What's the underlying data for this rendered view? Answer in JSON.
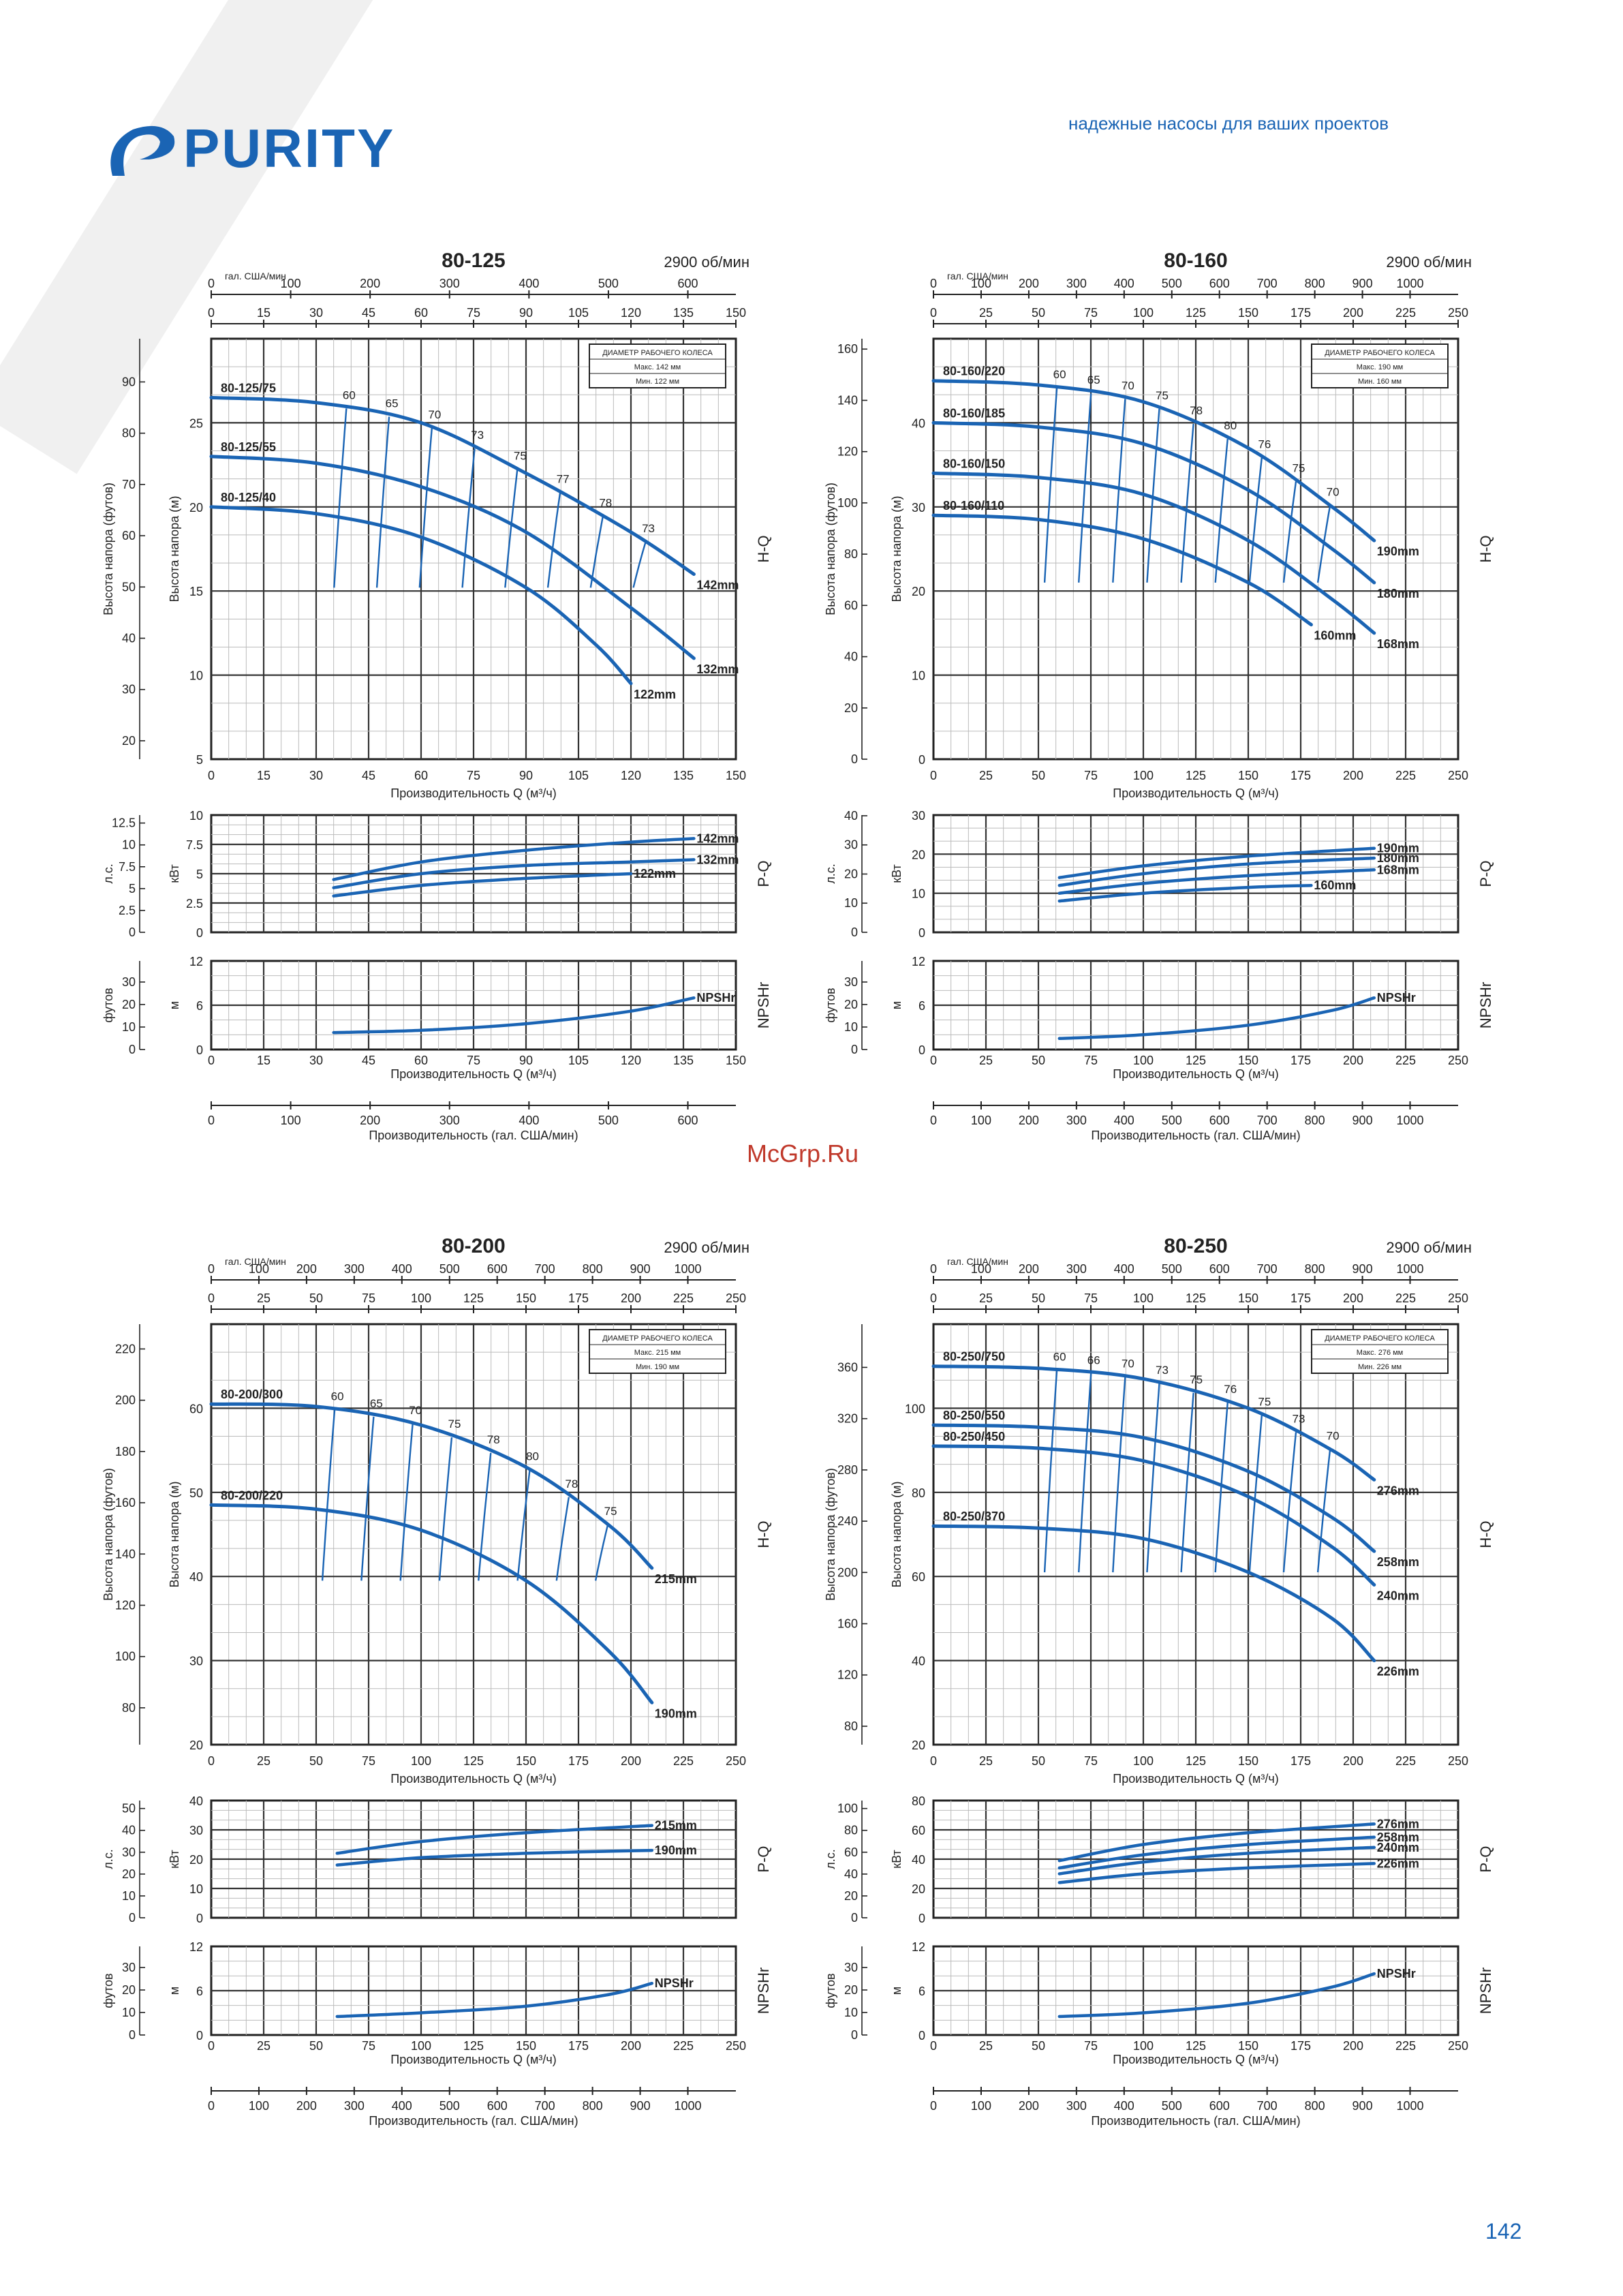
{
  "header": {
    "brand": "PURITY",
    "tagline": "надежные насосы для ваших проектов",
    "brand_color": "#1a64b4"
  },
  "watermark": "McGrp.Ru",
  "page_number": "142",
  "chart_data": [
    {
      "type": "line",
      "title": "80-125",
      "speed": "2900 об/мин",
      "xlabel": "Производительность Q (м³/ч)",
      "us_axis_label": "гал. США/мин",
      "us_label_bottom": "Производительность (гал. США/мин)",
      "x_ticks": [
        0,
        15,
        30,
        45,
        60,
        75,
        90,
        105,
        120,
        135,
        150
      ],
      "us_ticks": [
        0,
        100,
        200,
        300,
        400,
        500,
        600
      ],
      "us_factor": 4.403,
      "impeller_box": [
        "ДИАМЕТР РАБОЧЕГО КОЛЕСА",
        "Макс. 142 мм",
        "Мин. 122 мм"
      ],
      "hq": {
        "ylabel": "Высота напора (м)",
        "ylabel2": "Высота напора (футов)",
        "tag": "H-Q",
        "ylim": [
          5,
          30
        ],
        "m_ticks": [
          5,
          10,
          15,
          20,
          25
        ],
        "ft_ticks": [
          20,
          30,
          40,
          50,
          60,
          70,
          80,
          90
        ],
        "series": [
          {
            "name": "142mm",
            "label": "80-125/75",
            "x": [
              0,
              30,
              60,
              90,
              120,
              138
            ],
            "y": [
              26.5,
              26.2,
              25,
              22,
              18.5,
              16
            ]
          },
          {
            "name": "132mm",
            "label": "80-125/55",
            "x": [
              0,
              30,
              60,
              90,
              120,
              138
            ],
            "y": [
              23,
              22.6,
              21.2,
              18.5,
              14,
              11
            ]
          },
          {
            "name": "122mm",
            "label": "80-125/40",
            "x": [
              0,
              30,
              60,
              90,
              110,
              120
            ],
            "y": [
              20,
              19.6,
              18.2,
              15.2,
              11.8,
              9.5
            ]
          }
        ],
        "eff_labels": [
          "60",
          "65",
          "70",
          "73",
          "75",
          "77",
          "78",
          "73"
        ]
      },
      "pq": {
        "ylabel": "кВт",
        "ylabel2": "л.с.",
        "tag": "P-Q",
        "ylim": [
          0,
          10
        ],
        "kw_ticks": [
          0,
          2.5,
          5,
          7.5,
          10
        ],
        "hp_ticks": [
          0,
          2.5,
          5,
          7.5,
          10,
          12.5
        ],
        "series": [
          {
            "name": "142mm",
            "x": [
              35,
              60,
              90,
              120,
              138
            ],
            "y": [
              4.5,
              6,
              7,
              7.7,
              8
            ]
          },
          {
            "name": "132mm",
            "x": [
              35,
              60,
              90,
              120,
              138
            ],
            "y": [
              3.8,
              5,
              5.7,
              6,
              6.2
            ]
          },
          {
            "name": "122mm",
            "x": [
              35,
              60,
              90,
              120
            ],
            "y": [
              3.1,
              4,
              4.6,
              5
            ]
          }
        ]
      },
      "npsh": {
        "ylabel": "м",
        "ylabel2": "футов",
        "tag": "NPSHr",
        "ylim": [
          0,
          12
        ],
        "m_ticks": [
          0,
          6,
          12
        ],
        "ft_ticks": [
          0,
          10,
          20,
          30
        ],
        "series": [
          {
            "name": "NPSHr",
            "x": [
              35,
              60,
              90,
              120,
              138
            ],
            "y": [
              2.3,
              2.6,
              3.5,
              5.2,
              7
            ]
          }
        ]
      }
    },
    {
      "type": "line",
      "title": "80-160",
      "speed": "2900 об/мин",
      "xlabel": "Производительность Q (м³/ч)",
      "us_axis_label": "гал. США/мин",
      "us_label_bottom": "Производительность (гал. США/мин)",
      "x_ticks": [
        0,
        25,
        50,
        75,
        100,
        125,
        150,
        175,
        200,
        225,
        250
      ],
      "us_ticks": [
        0,
        100,
        200,
        300,
        400,
        500,
        600,
        700,
        800,
        900,
        1000
      ],
      "us_factor": 4.403,
      "impeller_box": [
        "ДИАМЕТР РАБОЧЕГО КОЛЕСА",
        "Макс. 190 мм",
        "Мин. 160 мм"
      ],
      "hq": {
        "ylabel": "Высота напора (м)",
        "ylabel2": "Высота напора (футов)",
        "tag": "H-Q",
        "ylim": [
          0,
          50
        ],
        "m_ticks": [
          0,
          10,
          20,
          30,
          40
        ],
        "ft_ticks": [
          0,
          20,
          40,
          60,
          80,
          100,
          120,
          140,
          160
        ],
        "series": [
          {
            "name": "190mm",
            "label": "80-160/220",
            "x": [
              0,
              50,
              100,
              150,
              190,
              210
            ],
            "y": [
              45,
              44.5,
              42.5,
              37,
              30,
              26
            ]
          },
          {
            "name": "180mm",
            "label": "80-160/185",
            "x": [
              0,
              50,
              100,
              150,
              190,
              210
            ],
            "y": [
              40,
              39.5,
              37.5,
              32,
              25,
              21
            ]
          },
          {
            "name": "168mm",
            "label": "80-160/150",
            "x": [
              0,
              50,
              100,
              150,
              190,
              210
            ],
            "y": [
              34,
              33.5,
              31.5,
              26,
              19,
              15
            ]
          },
          {
            "name": "160mm",
            "label": "80-160/110",
            "x": [
              0,
              50,
              100,
              150,
              180
            ],
            "y": [
              29,
              28.5,
              26.2,
              21,
              16
            ]
          }
        ],
        "eff_labels": [
          "60",
          "65",
          "70",
          "75",
          "78",
          "80",
          "76",
          "75",
          "70"
        ]
      },
      "pq": {
        "ylabel": "кВт",
        "ylabel2": "л.с.",
        "tag": "P-Q",
        "ylim": [
          0,
          30
        ],
        "kw_ticks": [
          0,
          10,
          20,
          30
        ],
        "hp_ticks": [
          0,
          10,
          20,
          30,
          40
        ],
        "series": [
          {
            "name": "190mm",
            "x": [
              60,
              100,
              150,
              210
            ],
            "y": [
              14,
              17,
              19.5,
              21.5
            ]
          },
          {
            "name": "180mm",
            "x": [
              60,
              100,
              150,
              210
            ],
            "y": [
              12,
              15,
              17.5,
              19
            ]
          },
          {
            "name": "168mm",
            "x": [
              60,
              100,
              150,
              210
            ],
            "y": [
              10,
              12.5,
              14.5,
              16
            ]
          },
          {
            "name": "160mm",
            "x": [
              60,
              100,
              150,
              180
            ],
            "y": [
              8,
              10,
              11.5,
              12
            ]
          }
        ]
      },
      "npsh": {
        "ylabel": "м",
        "ylabel2": "футов",
        "tag": "NPSHr",
        "ylim": [
          0,
          12
        ],
        "m_ticks": [
          0,
          6,
          12
        ],
        "ft_ticks": [
          0,
          10,
          20,
          30
        ],
        "series": [
          {
            "name": "NPSHr",
            "x": [
              60,
              100,
              150,
              190,
              210
            ],
            "y": [
              1.5,
              2,
              3.3,
              5.3,
              7
            ]
          }
        ]
      }
    },
    {
      "type": "line",
      "title": "80-200",
      "speed": "2900 об/мин",
      "xlabel": "Производительность Q (м³/ч)",
      "us_axis_label": "гал. США/мин",
      "us_label_bottom": "Производительность (гал. США/мин)",
      "x_ticks": [
        0,
        25,
        50,
        75,
        100,
        125,
        150,
        175,
        200,
        225,
        250
      ],
      "us_ticks": [
        0,
        100,
        200,
        300,
        400,
        500,
        600,
        700,
        800,
        900,
        1000
      ],
      "us_factor": 4.403,
      "impeller_box": [
        "ДИАМЕТР РАБОЧЕГО КОЛЕСА",
        "Макс. 215 мм",
        "Мин. 190 мм"
      ],
      "hq": {
        "ylabel": "Высота напора (м)",
        "ylabel2": "Высота напора (футов)",
        "tag": "H-Q",
        "ylim": [
          20,
          70
        ],
        "m_ticks": [
          20,
          30,
          40,
          50,
          60
        ],
        "ft_ticks": [
          80,
          100,
          120,
          140,
          160,
          180,
          200,
          220
        ],
        "series": [
          {
            "name": "215mm",
            "label": "80-200/300",
            "x": [
              0,
              50,
              100,
              150,
              190,
              210
            ],
            "y": [
              60.5,
              60.2,
              58,
              53,
              46,
              41
            ]
          },
          {
            "name": "190mm",
            "label": "80-200/220",
            "x": [
              0,
              50,
              100,
              150,
              190,
              210
            ],
            "y": [
              48.5,
              48,
              45.5,
              39.5,
              31,
              25
            ]
          }
        ],
        "eff_labels": [
          "60",
          "65",
          "70",
          "75",
          "78",
          "80",
          "78",
          "75"
        ]
      },
      "pq": {
        "ylabel": "кВт",
        "ylabel2": "л.с.",
        "tag": "P-Q",
        "ylim": [
          0,
          40
        ],
        "kw_ticks": [
          0,
          10,
          20,
          30,
          40
        ],
        "hp_ticks": [
          0,
          10,
          20,
          30,
          40,
          50
        ],
        "series": [
          {
            "name": "215mm",
            "x": [
              60,
              100,
              150,
              210
            ],
            "y": [
              22,
              26,
              29,
              31.5
            ]
          },
          {
            "name": "190mm",
            "x": [
              60,
              100,
              150,
              210
            ],
            "y": [
              18,
              20.5,
              22,
              23
            ]
          }
        ]
      },
      "npsh": {
        "ylabel": "м",
        "ylabel2": "футов",
        "tag": "NPSHr",
        "ylim": [
          0,
          12
        ],
        "m_ticks": [
          0,
          6,
          12
        ],
        "ft_ticks": [
          0,
          10,
          20,
          30
        ],
        "series": [
          {
            "name": "NPSHr",
            "x": [
              60,
              100,
              150,
              190,
              210
            ],
            "y": [
              2.5,
              3,
              3.9,
              5.5,
              7
            ]
          }
        ]
      }
    },
    {
      "type": "line",
      "title": "80-250",
      "speed": "2900 об/мин",
      "xlabel": "Производительность Q (м³/ч)",
      "us_axis_label": "гал. США/мин",
      "us_label_bottom": "Производительность (гал. США/мин)",
      "x_ticks": [
        0,
        25,
        50,
        75,
        100,
        125,
        150,
        175,
        200,
        225,
        250
      ],
      "us_ticks": [
        0,
        100,
        200,
        300,
        400,
        500,
        600,
        700,
        800,
        900,
        1000
      ],
      "us_factor": 4.403,
      "impeller_box": [
        "ДИАМЕТР РАБОЧЕГО КОЛЕСА",
        "Макс. 276 мм",
        "Мин. 226 мм"
      ],
      "hq": {
        "ylabel": "Высота напора (м)",
        "ylabel2": "Высота напора (футов)",
        "tag": "H-Q",
        "ylim": [
          20,
          120
        ],
        "m_ticks": [
          20,
          40,
          60,
          80,
          100
        ],
        "ft_ticks": [
          80,
          120,
          160,
          200,
          240,
          280,
          320,
          360
        ],
        "series": [
          {
            "name": "276mm",
            "label": "80-250/750",
            "x": [
              0,
              50,
              100,
              150,
              190,
              210
            ],
            "y": [
              110,
              109.5,
              107,
              100,
              90,
              83
            ]
          },
          {
            "name": "258mm",
            "label": "80-250/550",
            "x": [
              0,
              50,
              100,
              150,
              190,
              210
            ],
            "y": [
              96,
              95.5,
              93,
              85,
              74,
              66
            ]
          },
          {
            "name": "240mm",
            "label": "80-250/450",
            "x": [
              0,
              50,
              100,
              150,
              190,
              210
            ],
            "y": [
              91,
              90.5,
              87.5,
              79,
              67,
              58
            ]
          },
          {
            "name": "226mm",
            "label": "80-250/370",
            "x": [
              0,
              50,
              100,
              150,
              190,
              210
            ],
            "y": [
              72,
              71.5,
              69,
              61,
              50,
              40
            ]
          }
        ],
        "eff_labels": [
          "60",
          "66",
          "70",
          "73",
          "75",
          "76",
          "75",
          "73",
          "70"
        ]
      },
      "pq": {
        "ylabel": "кВт",
        "ylabel2": "л.с.",
        "tag": "P-Q",
        "ylim": [
          0,
          80
        ],
        "kw_ticks": [
          0,
          20,
          40,
          60,
          80
        ],
        "hp_ticks": [
          0,
          20,
          40,
          60,
          80,
          100
        ],
        "series": [
          {
            "name": "276mm",
            "x": [
              60,
              100,
              150,
              210
            ],
            "y": [
              39,
              50,
              58,
              64
            ]
          },
          {
            "name": "258mm",
            "x": [
              60,
              100,
              150,
              210
            ],
            "y": [
              34,
              43,
              50,
              55
            ]
          },
          {
            "name": "240mm",
            "x": [
              60,
              100,
              150,
              210
            ],
            "y": [
              30,
              38,
              44,
              48
            ]
          },
          {
            "name": "226mm",
            "x": [
              60,
              100,
              150,
              210
            ],
            "y": [
              24,
              30,
              34,
              37
            ]
          }
        ]
      },
      "npsh": {
        "ylabel": "м",
        "ylabel2": "футов",
        "tag": "NPSHr",
        "ylim": [
          0,
          12
        ],
        "m_ticks": [
          0,
          6,
          12
        ],
        "ft_ticks": [
          0,
          10,
          20,
          30
        ],
        "series": [
          {
            "name": "NPSHr",
            "x": [
              60,
              100,
              150,
              190,
              210
            ],
            "y": [
              2.5,
              3,
              4.3,
              6.5,
              8.3
            ]
          }
        ]
      }
    }
  ]
}
